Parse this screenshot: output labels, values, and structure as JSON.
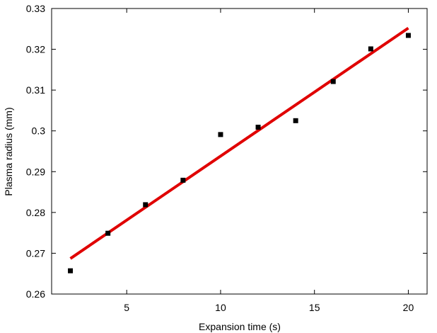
{
  "chart_data": {
    "type": "scatter",
    "title": "",
    "xlabel": "Expansion time (s)",
    "ylabel": "Plasma radius (mm)",
    "xlim": [
      1,
      21
    ],
    "ylim": [
      0.26,
      0.33
    ],
    "xticks": [
      5,
      10,
      15,
      20
    ],
    "yticks": [
      0.26,
      0.27,
      0.28,
      0.29,
      0.3,
      0.31,
      0.32,
      0.33
    ],
    "xtick_labels": [
      "5",
      "10",
      "15",
      "20"
    ],
    "ytick_labels": [
      "0.26",
      "0.27",
      "0.28",
      "0.29",
      "0.3",
      "0.31",
      "0.32",
      "0.33"
    ],
    "grid": false,
    "legend": "none",
    "series": [
      {
        "kind": "points",
        "marker": "square",
        "color": "#000000",
        "x": [
          2,
          4,
          6,
          8,
          10,
          12,
          14,
          16,
          18,
          20
        ],
        "y": [
          0.2657,
          0.2749,
          0.2819,
          0.2879,
          0.2991,
          0.3009,
          0.3025,
          0.3121,
          0.3201,
          0.3234
        ]
      },
      {
        "kind": "fit-line",
        "color": "#e00000",
        "x": [
          2,
          20
        ],
        "y": [
          0.2687,
          0.3252
        ]
      }
    ]
  }
}
